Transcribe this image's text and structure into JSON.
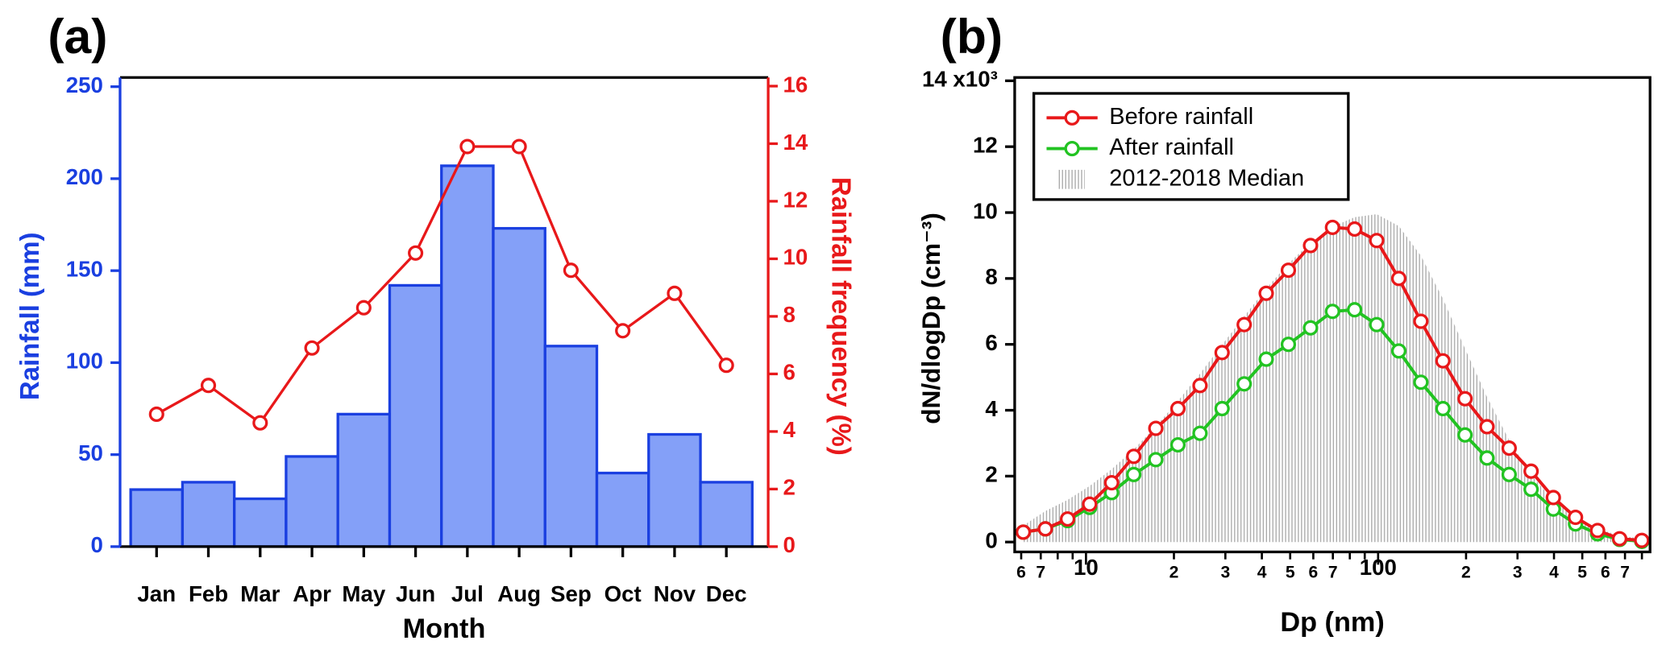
{
  "chart_data": [
    {
      "type": "bar",
      "title": "(a)",
      "xlabel": "Month",
      "ylabel": "Rainfall (mm)",
      "y2label": "Rainfall frequency (%)",
      "categories": [
        "Jan",
        "Feb",
        "Mar",
        "Apr",
        "May",
        "Jun",
        "Jul",
        "Aug",
        "Sep",
        "Oct",
        "Nov",
        "Dec"
      ],
      "series": [
        {
          "type": "bar",
          "color": "#84a0f8",
          "edge_color": "#1a3fe0",
          "values": [
            31,
            35,
            26,
            49,
            72,
            142,
            207,
            173,
            109,
            40,
            61,
            35
          ]
        },
        {
          "type": "line",
          "axis": "y2",
          "color": "#e8181a",
          "values": [
            4.6,
            5.6,
            4.3,
            6.9,
            8.3,
            10.2,
            13.9,
            13.9,
            9.6,
            7.5,
            8.8,
            6.3
          ]
        }
      ],
      "ylim": [
        0,
        255
      ],
      "yticks": [
        0,
        50,
        100,
        150,
        200,
        250
      ],
      "y_color": "#1a3fe0",
      "y2lim": [
        0,
        16.3
      ],
      "y2ticks": [
        0,
        2,
        4,
        6,
        8,
        10,
        12,
        14,
        16
      ],
      "y2_color": "#e8181a",
      "grid": false
    },
    {
      "type": "line",
      "title": "(b)",
      "xlabel": "Dp (nm)",
      "ylabel": "dN/dlogDp (cm⁻³)",
      "xscale": "log",
      "x": [
        6.1,
        7.26,
        8.65,
        10.29,
        12.24,
        14.57,
        17.34,
        20.64,
        24.57,
        29.24,
        34.8,
        41.4,
        49.3,
        58.7,
        69.8,
        83.1,
        98.9,
        117.7,
        140.1,
        166.7,
        198.4,
        236,
        281,
        334,
        398,
        474,
        564,
        671,
        799
      ],
      "series": [
        {
          "name": "Before rainfall",
          "color": "#e8181a",
          "style": "line",
          "values": [
            0.3,
            0.4,
            0.7,
            1.15,
            1.8,
            2.6,
            3.45,
            4.05,
            4.75,
            5.75,
            6.6,
            7.55,
            8.25,
            9.0,
            9.55,
            9.5,
            9.15,
            8.0,
            6.7,
            5.5,
            4.35,
            3.5,
            2.85,
            2.15,
            1.35,
            0.75,
            0.35,
            0.1,
            0.05
          ]
        },
        {
          "name": "After rainfall",
          "color": "#22c322",
          "style": "line",
          "values": [
            0.3,
            0.4,
            0.65,
            1.05,
            1.5,
            2.05,
            2.5,
            2.95,
            3.3,
            4.05,
            4.8,
            5.55,
            6.0,
            6.5,
            7.0,
            7.05,
            6.6,
            5.8,
            4.85,
            4.05,
            3.25,
            2.55,
            2.05,
            1.6,
            1.0,
            0.55,
            0.25,
            0.08,
            0.02
          ]
        },
        {
          "name": "2012-2018 Median",
          "color": "#a8a8a8",
          "style": "hatch",
          "values": [
            0.5,
            0.94,
            1.28,
            1.7,
            2.21,
            2.81,
            3.51,
            4.28,
            5.11,
            5.99,
            6.85,
            7.69,
            8.45,
            9.08,
            9.57,
            9.86,
            9.95,
            9.59,
            8.69,
            7.38,
            5.87,
            4.4,
            3.09,
            2.04,
            1.26,
            0.73,
            0.4,
            0.2,
            0.1
          ]
        }
      ],
      "xlim": [
        5.7,
        853
      ],
      "xticks": [
        6,
        7,
        10,
        {
          "value": 20,
          "label": "2"
        },
        {
          "value": 30,
          "label": "3"
        },
        {
          "value": 40,
          "label": "4"
        },
        {
          "value": 50,
          "label": "5"
        },
        {
          "value": 60,
          "label": "6"
        },
        {
          "value": 70,
          "label": "7"
        },
        100,
        {
          "value": 200,
          "label": "2"
        },
        {
          "value": 300,
          "label": "3"
        },
        {
          "value": 400,
          "label": "4"
        },
        {
          "value": 500,
          "label": "5"
        },
        {
          "value": 600,
          "label": "6"
        },
        {
          "value": 700,
          "label": "7"
        }
      ],
      "xminorticks": [
        8,
        9,
        80,
        90,
        800
      ],
      "ylim": [
        -0.3,
        14.1
      ],
      "yticks": [
        0,
        2,
        4,
        6,
        8,
        10,
        12,
        {
          "value": 14,
          "label": "14 x10³"
        }
      ],
      "legend": "upper left",
      "grid": false
    }
  ]
}
